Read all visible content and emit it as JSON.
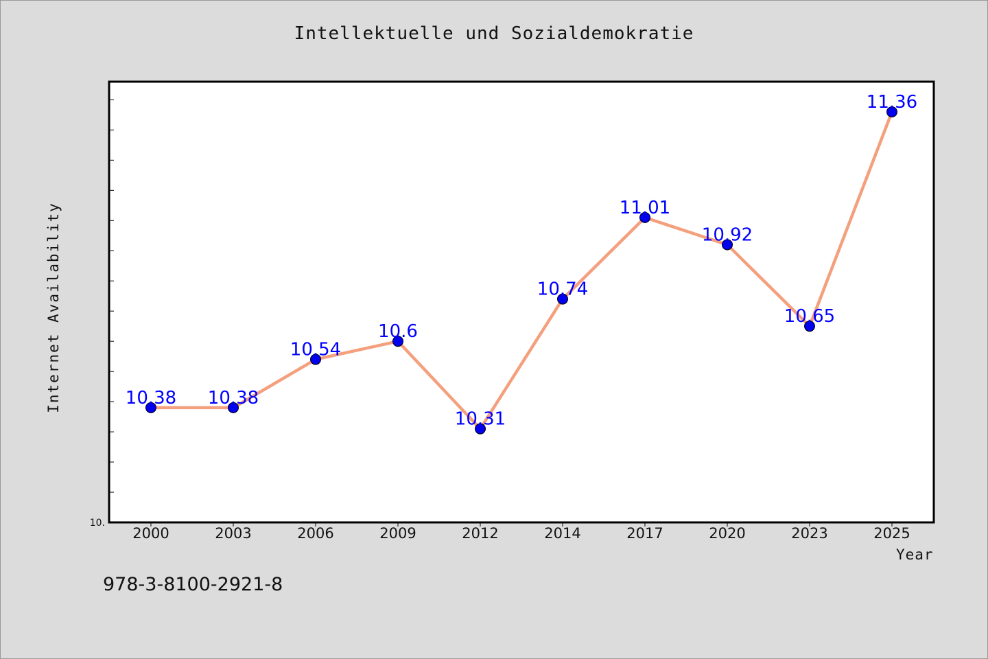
{
  "chart_data": {
    "type": "line",
    "title": "Intellektuelle und Sozialdemokratie",
    "xlabel": "Year",
    "ylabel": "Internet Availability",
    "categories": [
      "2000",
      "2003",
      "2006",
      "2009",
      "2012",
      "2014",
      "2017",
      "2020",
      "2023",
      "2025"
    ],
    "series": [
      {
        "values": [
          10.38,
          10.38,
          10.54,
          10.6,
          10.31,
          10.74,
          11.01,
          10.92,
          10.65,
          11.36
        ],
        "labels": [
          "10.38",
          "10.38",
          "10.54",
          "10.6",
          "10.31",
          "10.74",
          "11.01",
          "10.92",
          "10.65",
          "11.36"
        ],
        "line_color": "#f4a07e",
        "marker_color": "#0000ee",
        "label_color": "#0000ff"
      }
    ],
    "ylim": [
      10.0,
      11.5
    ],
    "y_min_label": "10.",
    "y_tick_step": 0.1,
    "grid": false,
    "legend": "none"
  },
  "footer_text": "978-3-8100-2921-8",
  "colors": {
    "background": "#dcdcdc",
    "plot_background": "#ffffff",
    "axis": "#000000"
  }
}
